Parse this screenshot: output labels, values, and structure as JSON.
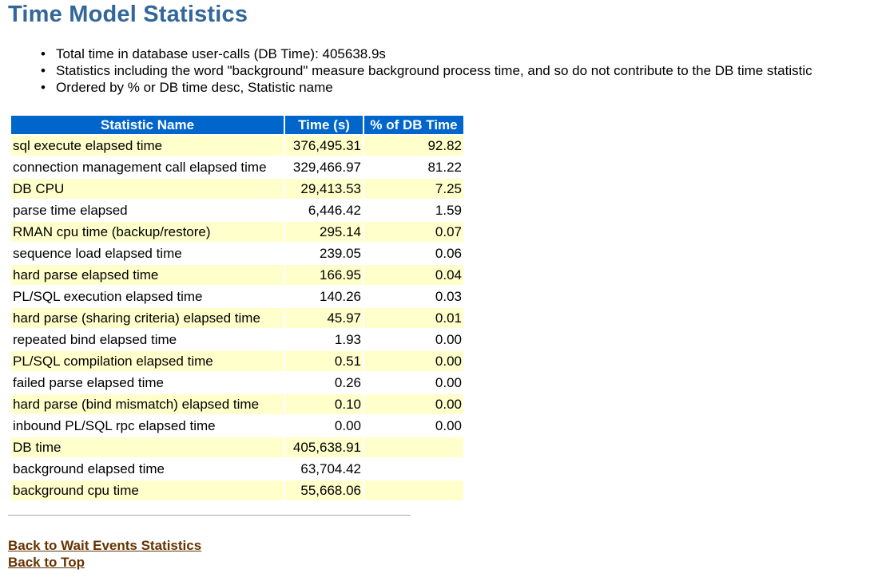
{
  "title": "Time Model Statistics",
  "notes": [
    "Total time in database user-calls (DB Time): 405638.9s",
    "Statistics including the word \"background\" measure background process time, and so do not contribute to the DB time statistic",
    "Ordered by % or DB time desc, Statistic name"
  ],
  "table": {
    "headers": [
      "Statistic Name",
      "Time (s)",
      "% of DB Time"
    ],
    "rows": [
      [
        "sql execute elapsed time",
        "376,495.31",
        "92.82"
      ],
      [
        "connection management call elapsed time",
        "329,466.97",
        "81.22"
      ],
      [
        "DB CPU",
        "29,413.53",
        "7.25"
      ],
      [
        "parse time elapsed",
        "6,446.42",
        "1.59"
      ],
      [
        "RMAN cpu time (backup/restore)",
        "295.14",
        "0.07"
      ],
      [
        "sequence load elapsed time",
        "239.05",
        "0.06"
      ],
      [
        "hard parse elapsed time",
        "166.95",
        "0.04"
      ],
      [
        "PL/SQL execution elapsed time",
        "140.26",
        "0.03"
      ],
      [
        "hard parse (sharing criteria) elapsed time",
        "45.97",
        "0.01"
      ],
      [
        "repeated bind elapsed time",
        "1.93",
        "0.00"
      ],
      [
        "PL/SQL compilation elapsed time",
        "0.51",
        "0.00"
      ],
      [
        "failed parse elapsed time",
        "0.26",
        "0.00"
      ],
      [
        "hard parse (bind mismatch) elapsed time",
        "0.10",
        "0.00"
      ],
      [
        "inbound PL/SQL rpc elapsed time",
        "0.00",
        "0.00"
      ],
      [
        "DB time",
        "405,638.91",
        ""
      ],
      [
        "background elapsed time",
        "63,704.42",
        ""
      ],
      [
        "background cpu time",
        "55,668.06",
        ""
      ]
    ]
  },
  "links": {
    "back_wait_events": "Back to Wait Events Statistics",
    "back_top": "Back to Top"
  },
  "colors": {
    "title": "#336699",
    "header_bg": "#0066cc",
    "row_alt_bg": "#ffffcc",
    "link": "#663300"
  }
}
